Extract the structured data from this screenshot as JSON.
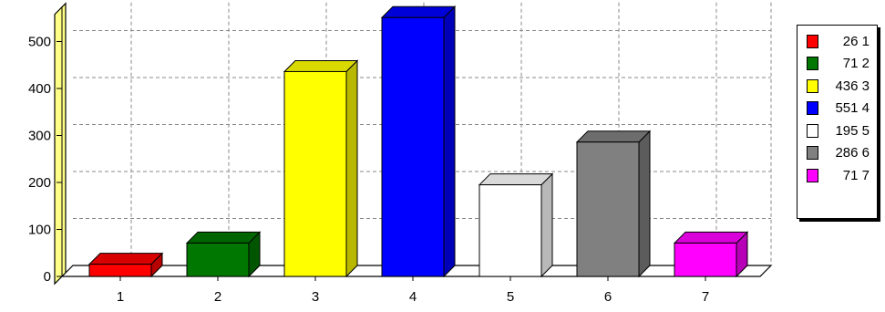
{
  "chart_data": {
    "type": "bar",
    "title": "",
    "xlabel": "",
    "ylabel": "",
    "categories": [
      "1",
      "2",
      "3",
      "4",
      "5",
      "6",
      "7"
    ],
    "values": [
      26,
      71,
      436,
      551,
      195,
      286,
      71
    ],
    "colors": [
      "#ff0000",
      "#007700",
      "#ffff00",
      "#0000ff",
      "#ffffff",
      "#808080",
      "#ff00ff"
    ],
    "ylim": [
      0,
      550
    ],
    "yticks": [
      "0",
      "100",
      "200",
      "300",
      "400",
      "500"
    ],
    "grid": true,
    "style": "3d",
    "legend_position": "right",
    "legend": [
      {
        "label": "26 1",
        "color": "#ff0000"
      },
      {
        "label": "71 2",
        "color": "#007700"
      },
      {
        "label": "436 3",
        "color": "#ffff00"
      },
      {
        "label": "551 4",
        "color": "#0000ff"
      },
      {
        "label": "195 5",
        "color": "#ffffff"
      },
      {
        "label": "286 6",
        "color": "#808080"
      },
      {
        "label": "71 7",
        "color": "#ff00ff"
      }
    ]
  }
}
